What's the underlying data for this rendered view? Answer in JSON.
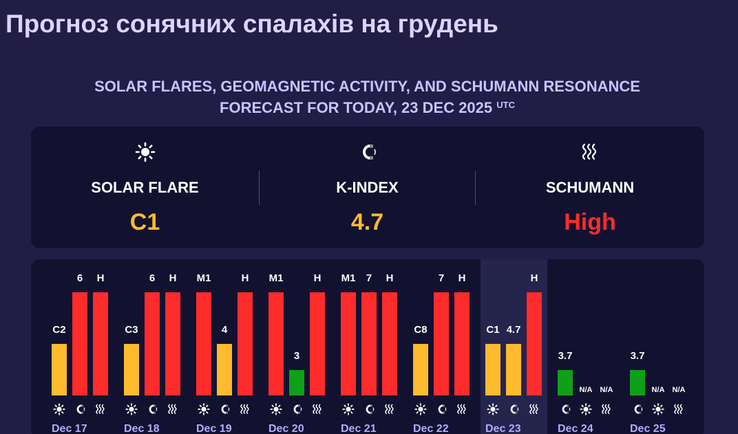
{
  "header": {
    "title": "Прогноз сонячних спалахів на грудень",
    "subtitle_line1": "SOLAR FLARES, GEOMAGNETIC ACTIVITY, AND SCHUMANN RESONANCE",
    "subtitle_line2": "FORECAST FOR TODAY, 23 DEC 2025",
    "subtitle_sup": "UTC"
  },
  "summary": {
    "solar_flare": {
      "label": "SOLAR FLARE",
      "value": "C1",
      "icon": "sun-icon",
      "color": "#fdbb2d"
    },
    "k_index": {
      "label": "K-INDEX",
      "value": "4.7",
      "icon": "magnet-icon",
      "color": "#fdbb2d"
    },
    "schumann": {
      "label": "SCHUMANN",
      "value": "High",
      "icon": "waves-icon",
      "color": "#ff2c2c"
    }
  },
  "colors": {
    "red": "#ff2c2c",
    "yellow": "#fdbb2d",
    "green": "#0fa01a",
    "background": "#221d47",
    "panel": "#121230"
  },
  "timeline": {
    "partial_day": {
      "flare": {
        "label": "",
        "level": "red"
      }
    },
    "days": [
      {
        "date": "Dec 17",
        "flare": {
          "label": "C2",
          "level": "yellow"
        },
        "kindex": {
          "label": "6",
          "level": "red"
        },
        "schumann": {
          "label": "H",
          "level": "red"
        }
      },
      {
        "date": "Dec 18",
        "flare": {
          "label": "C3",
          "level": "yellow"
        },
        "kindex": {
          "label": "6",
          "level": "red"
        },
        "schumann": {
          "label": "H",
          "level": "red"
        }
      },
      {
        "date": "Dec 19",
        "flare": {
          "label": "M1",
          "level": "red"
        },
        "kindex": {
          "label": "4",
          "level": "yellow"
        },
        "schumann": {
          "label": "H",
          "level": "red"
        }
      },
      {
        "date": "Dec 20",
        "flare": {
          "label": "M1",
          "level": "red"
        },
        "kindex": {
          "label": "3",
          "level": "green"
        },
        "schumann": {
          "label": "H",
          "level": "red"
        }
      },
      {
        "date": "Dec 21",
        "flare": {
          "label": "M1",
          "level": "red"
        },
        "kindex": {
          "label": "7",
          "level": "red"
        },
        "schumann": {
          "label": "H",
          "level": "red"
        }
      },
      {
        "date": "Dec 22",
        "flare": {
          "label": "C8",
          "level": "yellow"
        },
        "kindex": {
          "label": "7",
          "level": "red"
        },
        "schumann": {
          "label": "H",
          "level": "red"
        }
      },
      {
        "date": "Dec 23",
        "flare": {
          "label": "C1",
          "level": "yellow"
        },
        "kindex": {
          "label": "4.7",
          "level": "yellow"
        },
        "schumann": {
          "label": "H",
          "level": "red"
        }
      },
      {
        "date": "Dec 24",
        "kindex": {
          "label": "3.7",
          "level": "green"
        },
        "flare": {
          "label": "N/A",
          "level": "na"
        },
        "schumann": {
          "label": "N/A",
          "level": "na"
        }
      },
      {
        "date": "Dec 25",
        "kindex": {
          "label": "3.7",
          "level": "green"
        },
        "flare": {
          "label": "N/A",
          "level": "na"
        },
        "schumann": {
          "label": "N/A",
          "level": "na"
        }
      }
    ]
  }
}
